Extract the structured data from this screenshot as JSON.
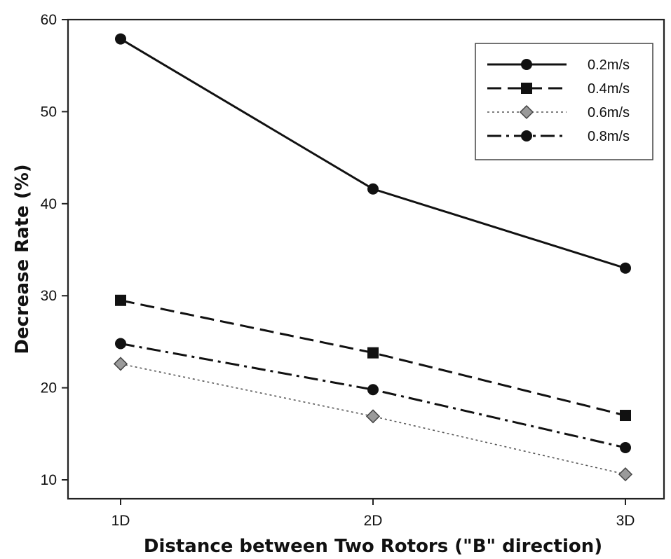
{
  "chart_data": {
    "type": "line",
    "categories": [
      "1D",
      "2D",
      "3D"
    ],
    "xlabel": "Distance between Two Rotors (\"B\" direction)",
    "ylabel": "Decrease Rate (%)",
    "ylim": [
      8,
      60
    ],
    "yticks": [
      10,
      20,
      30,
      40,
      50,
      60
    ],
    "grid": false,
    "legend_position": "top-right",
    "series": [
      {
        "name": "0.2m/s",
        "values": [
          57.9,
          41.6,
          33.0
        ],
        "marker": "circle",
        "line": "solid",
        "color": "#111111"
      },
      {
        "name": "0.4m/s",
        "values": [
          29.5,
          23.8,
          17.0
        ],
        "marker": "square",
        "line": "dashed",
        "color": "#111111"
      },
      {
        "name": "0.6m/s",
        "values": [
          22.6,
          16.9,
          10.6
        ],
        "marker": "diamond",
        "line": "dotted",
        "color": "#555555"
      },
      {
        "name": "0.8m/s",
        "values": [
          24.8,
          19.8,
          13.5
        ],
        "marker": "circle",
        "line": "dash-dot",
        "color": "#111111"
      }
    ]
  }
}
